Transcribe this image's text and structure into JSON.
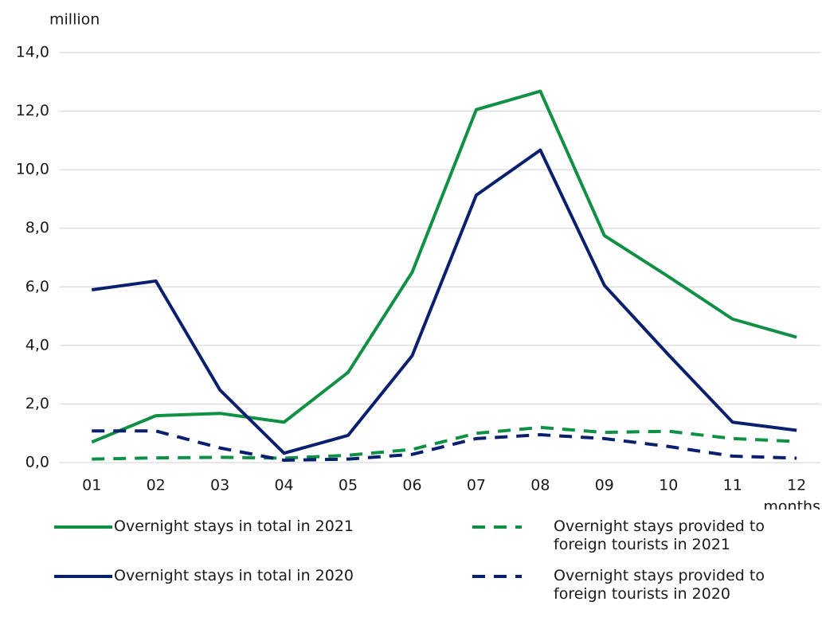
{
  "chart_data": {
    "type": "line",
    "ylabel": "million",
    "xlabel": "months",
    "categories": [
      "01",
      "02",
      "03",
      "04",
      "05",
      "06",
      "07",
      "08",
      "09",
      "10",
      "11",
      "12"
    ],
    "ylim": [
      0,
      14
    ],
    "yticks": [
      {
        "value": 0,
        "label": "0,0"
      },
      {
        "value": 2,
        "label": "2,0"
      },
      {
        "value": 4,
        "label": "4,0"
      },
      {
        "value": 6,
        "label": "6,0"
      },
      {
        "value": 8,
        "label": "8,0"
      },
      {
        "value": 10,
        "label": "10,0"
      },
      {
        "value": 12,
        "label": "12,0"
      },
      {
        "value": 14,
        "label": "14,0"
      }
    ],
    "grid": true,
    "series": [
      {
        "name": "Overnight stays in total in 2021",
        "color": "#109044",
        "dashed": false,
        "values": [
          0.7,
          1.6,
          1.68,
          1.38,
          3.08,
          6.5,
          12.05,
          12.68,
          7.75,
          6.35,
          4.9,
          4.28
        ]
      },
      {
        "name": "Overnight stays provided to foreign tourists in 2021",
        "color": "#109044",
        "dashed": true,
        "values": [
          0.12,
          0.16,
          0.18,
          0.15,
          0.25,
          0.45,
          1.0,
          1.2,
          1.03,
          1.07,
          0.82,
          0.72
        ]
      },
      {
        "name": "Overnight stays in total in 2020",
        "color": "#0a1f6e",
        "dashed": false,
        "values": [
          5.9,
          6.2,
          2.48,
          0.32,
          0.93,
          3.65,
          9.13,
          10.67,
          6.05,
          3.68,
          1.38,
          1.1
        ]
      },
      {
        "name": "Overnight stays provided to foreign tourists in 2020",
        "color": "#0a1f6e",
        "dashed": true,
        "values": [
          1.08,
          1.08,
          0.5,
          0.08,
          0.12,
          0.28,
          0.82,
          0.95,
          0.82,
          0.55,
          0.22,
          0.15
        ]
      }
    ]
  }
}
